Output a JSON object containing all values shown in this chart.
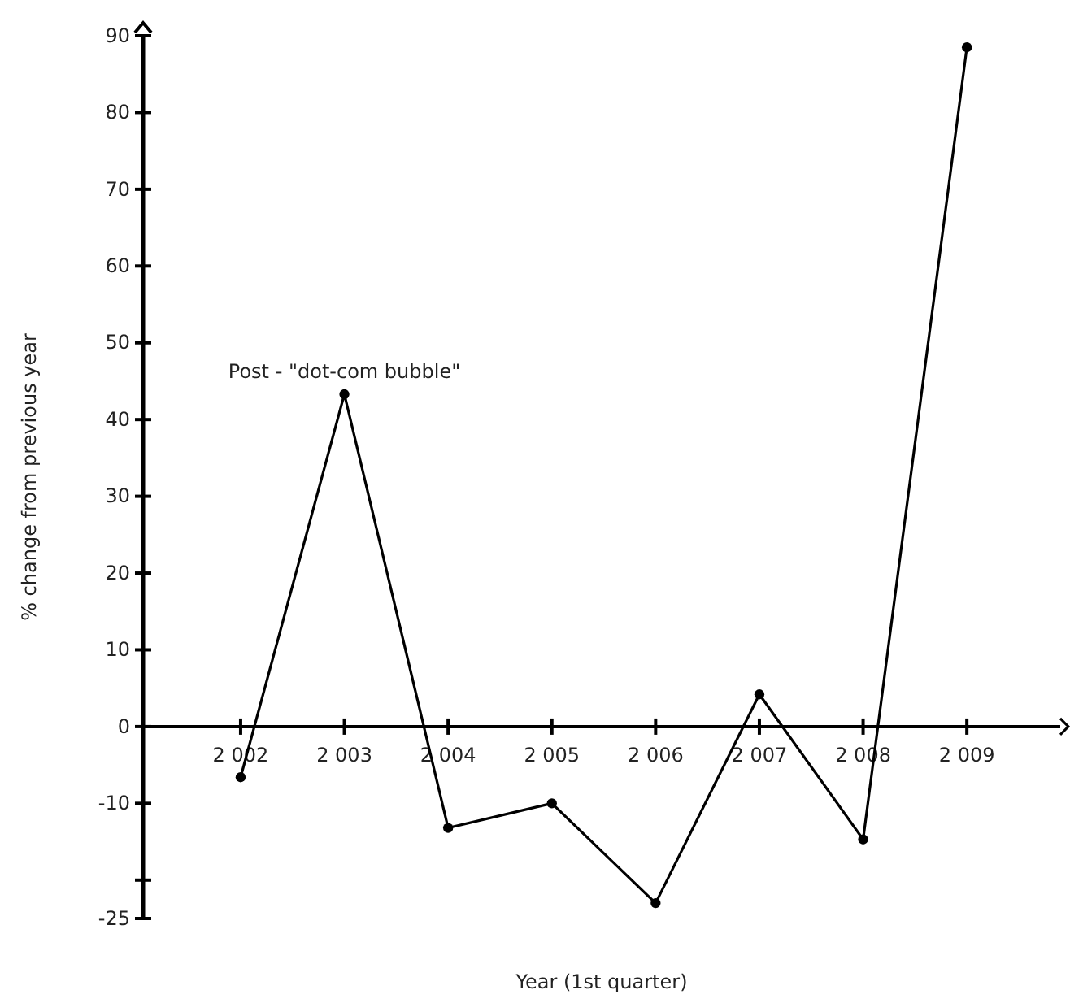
{
  "chart_data": {
    "type": "line",
    "xlabel": "Year (1st quarter)",
    "ylabel": "% change from previous year",
    "x": [
      2002,
      2003,
      2004,
      2005,
      2006,
      2007,
      2008,
      2009
    ],
    "series": [
      {
        "color": "#000000",
        "values": [
          -6.6,
          43.3,
          -13.2,
          -10.0,
          -23.0,
          4.2,
          -14.7,
          88.5
        ]
      }
    ],
    "xlim": [
      2001.06,
      2009.9
    ],
    "xticks": [
      {
        "value": 2002,
        "label": "2 002"
      },
      {
        "value": 2003,
        "label": "2 003"
      },
      {
        "value": 2004,
        "label": "2 004"
      },
      {
        "value": 2005,
        "label": "2 005"
      },
      {
        "value": 2006,
        "label": "2 006"
      },
      {
        "value": 2007,
        "label": "2 007"
      },
      {
        "value": 2008,
        "label": "2 008"
      },
      {
        "value": 2009,
        "label": "2 009"
      }
    ],
    "ylim": [
      -25,
      90
    ],
    "yticks": [
      -25,
      {
        "value": -20,
        "label": null
      },
      -10,
      0,
      10,
      20,
      30,
      40,
      50,
      60,
      70,
      80,
      90
    ],
    "annotations": [
      {
        "text": "Post - \"dot-com bubble\"",
        "x": 2003,
        "y": 43.3
      }
    ],
    "marker": "circle",
    "line_style": "solid",
    "grid": false
  }
}
